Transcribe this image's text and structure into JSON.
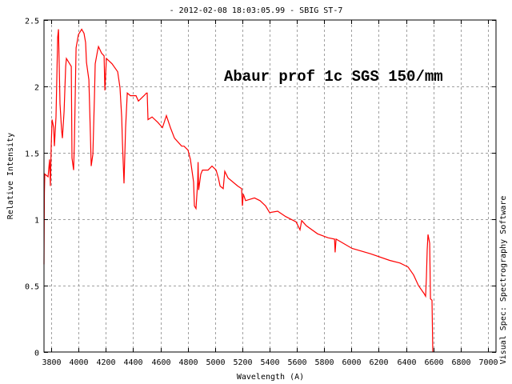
{
  "chart_data": {
    "type": "line",
    "title": "- 2012-02-08 18:03:05.99 - SBIG ST-7",
    "xlabel": "Wavelength (A)",
    "ylabel": "Relative Intensity",
    "side_label": "Visual Spec: Spectrography Software",
    "annotation": "Abaur prof 1c SGS 150/mm",
    "xlim": [
      3747,
      7059
    ],
    "ylim": [
      0,
      2.5
    ],
    "x_ticks": [
      3800,
      4000,
      4200,
      4400,
      4600,
      4800,
      5000,
      5200,
      5400,
      5600,
      5800,
      6000,
      6200,
      6400,
      6600,
      6800,
      7000
    ],
    "y_ticks": [
      0,
      0.5,
      1,
      1.5,
      2,
      2.5
    ],
    "y_tick_labels": [
      "0",
      "0.5",
      "1",
      "1.5",
      "2",
      "2.5"
    ],
    "grid": true,
    "series_color": "#ff0000",
    "grid_color": "#a0a0a0",
    "series": [
      {
        "x": [
          3747,
          3750,
          3753,
          3777,
          3788,
          3794,
          3800,
          3806,
          3818,
          3823,
          3835,
          3847,
          3853,
          3864,
          3876,
          3882,
          3894,
          3906,
          3911,
          3935,
          3947,
          3952,
          3964,
          3970,
          3982,
          3999,
          4023,
          4040,
          4052,
          4058,
          4076,
          4087,
          4093,
          4105,
          4117,
          4122,
          4140,
          4146,
          4169,
          4187,
          4193,
          4204,
          4246,
          4287,
          4304,
          4316,
          4322,
          4333,
          4345,
          4357,
          4380,
          4421,
          4439,
          4480,
          4498,
          4503,
          4509,
          4539,
          4580,
          4615,
          4644,
          4673,
          4703,
          4756,
          4773,
          4802,
          4820,
          4843,
          4849,
          4861,
          4873,
          4876,
          4880,
          4896,
          4908,
          4949,
          4978,
          5008,
          5025,
          5037,
          5060,
          5072,
          5096,
          5166,
          5195,
          5201,
          5207,
          5224,
          5289,
          5330,
          5371,
          5400,
          5459,
          5518,
          5594,
          5623,
          5635,
          5670,
          5752,
          5828,
          5876,
          5880,
          5887,
          6004,
          6139,
          6280,
          6356,
          6415,
          6455,
          6491,
          6532,
          6543,
          6549,
          6555,
          6561,
          6573,
          6579,
          6590,
          6596
        ],
        "y": [
          0.66,
          1.2,
          1.34,
          1.32,
          1.45,
          1.25,
          1.55,
          1.75,
          1.69,
          1.55,
          1.77,
          2.37,
          2.43,
          1.87,
          1.67,
          1.61,
          1.81,
          2.15,
          2.21,
          2.17,
          2.15,
          1.46,
          1.37,
          1.58,
          2.29,
          2.39,
          2.43,
          2.4,
          2.33,
          2.18,
          2.05,
          1.64,
          1.4,
          1.49,
          1.93,
          2.17,
          2.27,
          2.3,
          2.25,
          2.23,
          1.97,
          2.21,
          2.17,
          2.11,
          1.99,
          1.77,
          1.57,
          1.27,
          1.69,
          1.95,
          1.93,
          1.93,
          1.89,
          1.93,
          1.95,
          1.95,
          1.75,
          1.77,
          1.73,
          1.69,
          1.78,
          1.69,
          1.61,
          1.55,
          1.55,
          1.52,
          1.45,
          1.28,
          1.1,
          1.08,
          1.28,
          1.43,
          1.22,
          1.34,
          1.37,
          1.37,
          1.4,
          1.37,
          1.31,
          1.25,
          1.23,
          1.36,
          1.31,
          1.25,
          1.23,
          1.1,
          1.19,
          1.14,
          1.16,
          1.14,
          1.1,
          1.05,
          1.06,
          1.02,
          0.98,
          0.92,
          0.99,
          0.95,
          0.89,
          0.86,
          0.85,
          0.75,
          0.85,
          0.78,
          0.74,
          0.69,
          0.67,
          0.64,
          0.58,
          0.5,
          0.44,
          0.42,
          0.56,
          0.77,
          0.885,
          0.82,
          0.4,
          0.39,
          0
        ]
      }
    ]
  }
}
